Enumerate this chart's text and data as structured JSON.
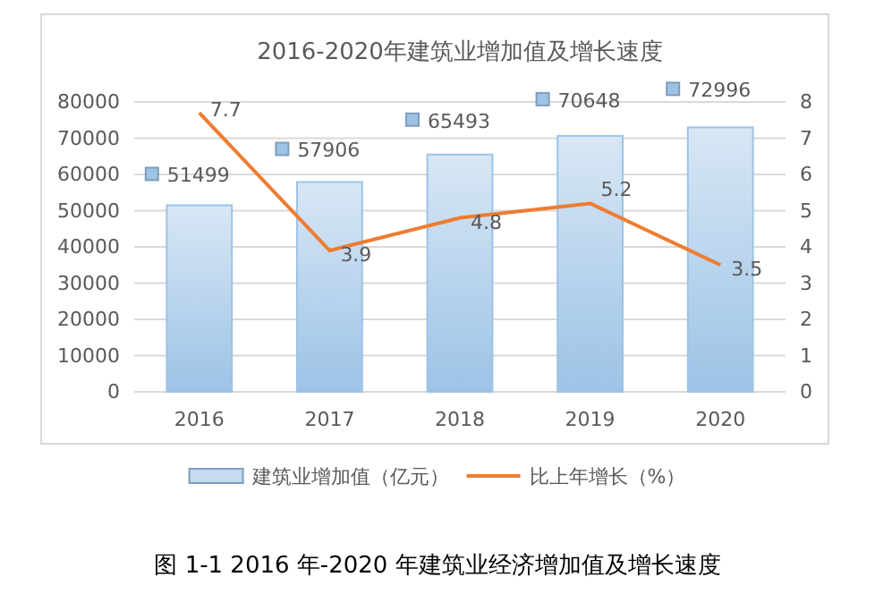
{
  "chart_data": {
    "type": "bar",
    "title": "2016-2020年建筑业增加值及增长速度",
    "categories": [
      "2016",
      "2017",
      "2018",
      "2019",
      "2020"
    ],
    "series": [
      {
        "name": "建筑业增加值（亿元）",
        "color": "#9dc3e6",
        "values": [
          51499,
          57906,
          65493,
          70648,
          72996
        ]
      },
      {
        "name": "比上年增长（%）",
        "type": "line",
        "axis": "y2",
        "color": "#ed7d31",
        "values": [
          7.7,
          3.9,
          4.8,
          5.2,
          3.5
        ]
      }
    ],
    "ylim": [
      0,
      80000
    ],
    "yticks": [
      0,
      10000,
      20000,
      30000,
      40000,
      50000,
      60000,
      70000,
      80000
    ],
    "y2lim": [
      0,
      8
    ],
    "y2ticks": [
      0,
      1,
      2,
      3,
      4,
      5,
      6,
      7,
      8
    ],
    "grid": "y",
    "legend": "bottom",
    "data_labels": true,
    "marker": "none",
    "annotations": [
      "图 1-1    2016 年-2020 年建筑业经济增加值及增长速度"
    ]
  }
}
